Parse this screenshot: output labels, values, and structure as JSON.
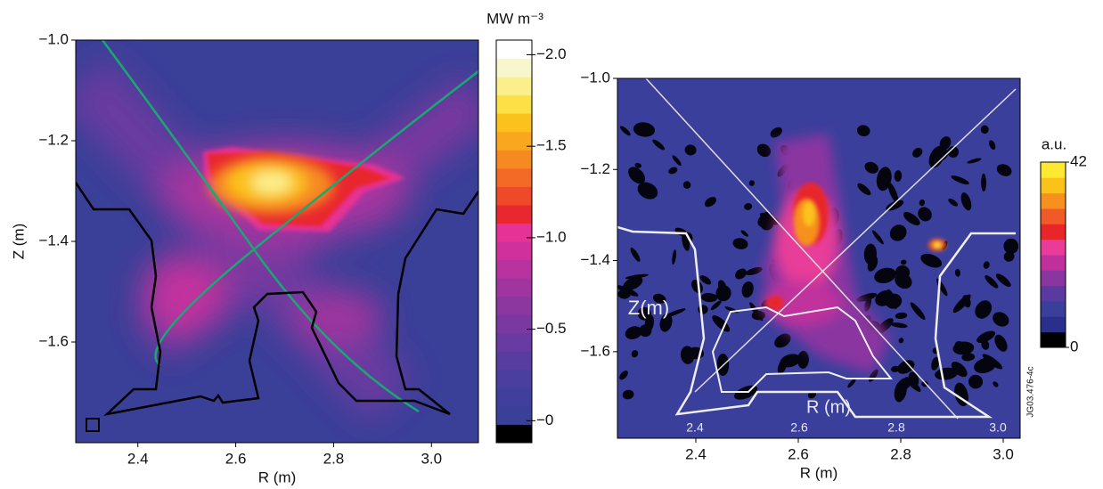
{
  "chart_data": [
    {
      "type": "heatmap",
      "xlabel": "R (m)",
      "ylabel": "Z (m)",
      "xlim": [
        2.273,
        3.096
      ],
      "ylim": [
        -1.8,
        -1.0
      ],
      "xticks": [
        2.4,
        2.6,
        2.8,
        {
          "value": 3,
          "label": "3.0"
        }
      ],
      "yticks": [
        {
          "value": -1,
          "label": "−1.0"
        },
        {
          "value": -1.2,
          "label": "−1.2"
        },
        {
          "value": -1.4,
          "label": "−1.4"
        },
        {
          "value": -1.6,
          "label": "−1.6"
        }
      ],
      "colorbar": {
        "label": "MW m⁻³",
        "clim": [
          0.12,
          -2.08
        ],
        "ticks": [
          {
            "value": -2,
            "label": "−2.0"
          },
          {
            "value": -1.5,
            "label": "−1.5"
          },
          {
            "value": -1,
            "label": "−1.0"
          },
          {
            "value": -0.5,
            "label": "−0.5"
          },
          {
            "value": 0,
            "label": "−0"
          }
        ],
        "colormap": [
          "#000000",
          "#3a3f98",
          "#40409c",
          "#4a3f9e",
          "#583da0",
          "#683ba2",
          "#7a399f",
          "#8c379f",
          "#a0359f",
          "#b8339f",
          "#d0309c",
          "#e63296",
          "#e8282e",
          "#ee4a2a",
          "#f26a26",
          "#f58a22",
          "#f9a81e",
          "#fcc21c",
          "#fde046",
          "#fbef8c",
          "#f8f6cc",
          "#ffffff"
        ]
      }
    },
    {
      "type": "heatmap",
      "xlabel": "R (m)",
      "xlim": [
        2.247,
        3.033
      ],
      "ylim": [
        -1.79,
        -1.0
      ],
      "xticks": [
        2.4,
        2.6,
        2.8,
        {
          "value": 3,
          "label": "3.0"
        }
      ],
      "yticks": [
        {
          "value": -1,
          "label": "−1.0"
        },
        {
          "value": -1.2,
          "label": "−1.2"
        },
        {
          "value": -1.4,
          "label": "−1.4"
        },
        {
          "value": -1.6,
          "label": "−1.6"
        }
      ],
      "colorbar": {
        "label": "a.u.",
        "clim": [
          0,
          42
        ],
        "ticks": [
          42,
          0
        ],
        "colormap": [
          "#000000",
          "#2a2f8c",
          "#3a3f9c",
          "#5a3aa0",
          "#8a36a0",
          "#c0309c",
          "#e83c98",
          "#e8262a",
          "#f05a26",
          "#f7901e",
          "#fbc21a",
          "#fde832"
        ]
      },
      "annotations": [
        "Z(m)",
        "R (m)",
        "2.4",
        "2.6",
        "2.8",
        "3.0",
        "JG03.476-4c"
      ]
    }
  ]
}
